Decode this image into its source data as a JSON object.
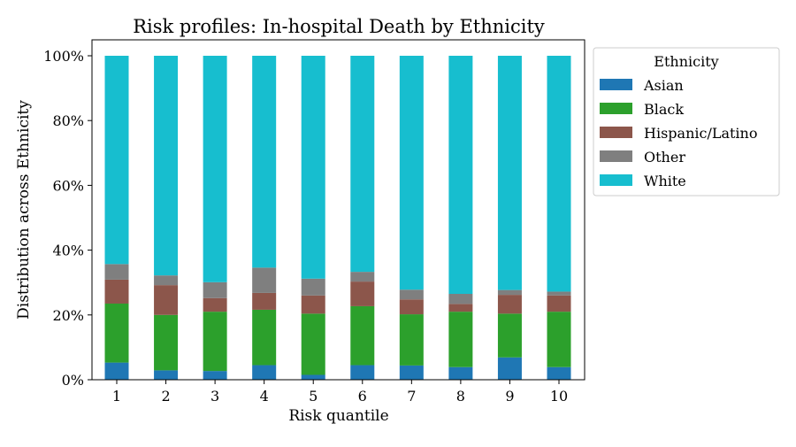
{
  "chart_data": {
    "type": "bar",
    "stacked": true,
    "title": "Risk profiles: In-hospital Death by Ethnicity",
    "xlabel": "Risk quantile",
    "ylabel": "Distribution across Ethnicity",
    "categories": [
      "1",
      "2",
      "3",
      "4",
      "5",
      "6",
      "7",
      "8",
      "9",
      "10"
    ],
    "ylim": [
      0,
      100
    ],
    "yticks": [
      {
        "value": 0,
        "label": "0%"
      },
      {
        "value": 20,
        "label": "20%"
      },
      {
        "value": 40,
        "label": "40%"
      },
      {
        "value": 60,
        "label": "60%"
      },
      {
        "value": 80,
        "label": "80%"
      },
      {
        "value": 100,
        "label": "100%"
      }
    ],
    "grid": false,
    "legend": {
      "title": "Ethnicity",
      "position": "outside-right-top"
    },
    "series": [
      {
        "name": "Asian",
        "color": "#1f77b4",
        "values": [
          5.3,
          2.9,
          2.7,
          4.5,
          1.5,
          4.5,
          4.4,
          3.9,
          6.9,
          3.9
        ]
      },
      {
        "name": "Black",
        "color": "#2ca02c",
        "values": [
          18.2,
          17.1,
          18.3,
          17.1,
          18.9,
          18.2,
          15.8,
          17.1,
          13.5,
          17.1
        ]
      },
      {
        "name": "Hispanic/Latino",
        "color": "#8c564b",
        "values": [
          7.4,
          9.2,
          4.2,
          5.2,
          5.6,
          7.6,
          4.6,
          2.4,
          5.8,
          5.0
        ]
      },
      {
        "name": "Other",
        "color": "#7f7f7f",
        "values": [
          4.8,
          3.0,
          4.9,
          7.8,
          5.2,
          3.0,
          3.0,
          3.1,
          1.5,
          1.2
        ]
      },
      {
        "name": "White",
        "color": "#17becf",
        "values": [
          64.3,
          67.8,
          69.9,
          65.4,
          68.8,
          66.7,
          72.2,
          73.5,
          72.3,
          72.8
        ]
      }
    ]
  }
}
